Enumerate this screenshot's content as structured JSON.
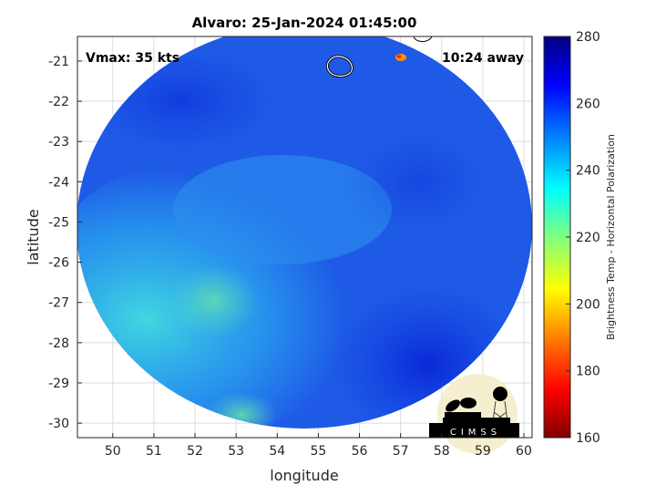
{
  "title": "Alvaro: 25-Jan-2024 01:45:00",
  "annotations": {
    "vmax": "Vmax: 35 kts",
    "time_away": "10:24 away"
  },
  "logo_text": "CIMSS",
  "chart_data": {
    "type": "heatmap",
    "title": "Alvaro: 25-Jan-2024 01:45:00",
    "xlabel": "longitude",
    "ylabel": "latitude",
    "xlim": [
      49.14,
      60.2
    ],
    "ylim": [
      -30.36,
      -20.39
    ],
    "xticks": [
      50,
      51,
      52,
      53,
      54,
      55,
      56,
      57,
      58,
      59,
      60
    ],
    "yticks": [
      -21,
      -22,
      -23,
      -24,
      -25,
      -26,
      -27,
      -28,
      -29,
      -30
    ],
    "grid": true,
    "colorbar": {
      "label": "Brightness Temp - Horizontal Polarization",
      "range": [
        160,
        280
      ],
      "ticks": [
        160,
        180,
        200,
        220,
        240,
        260,
        280
      ],
      "colormap": "jet",
      "position": "right"
    }
  }
}
